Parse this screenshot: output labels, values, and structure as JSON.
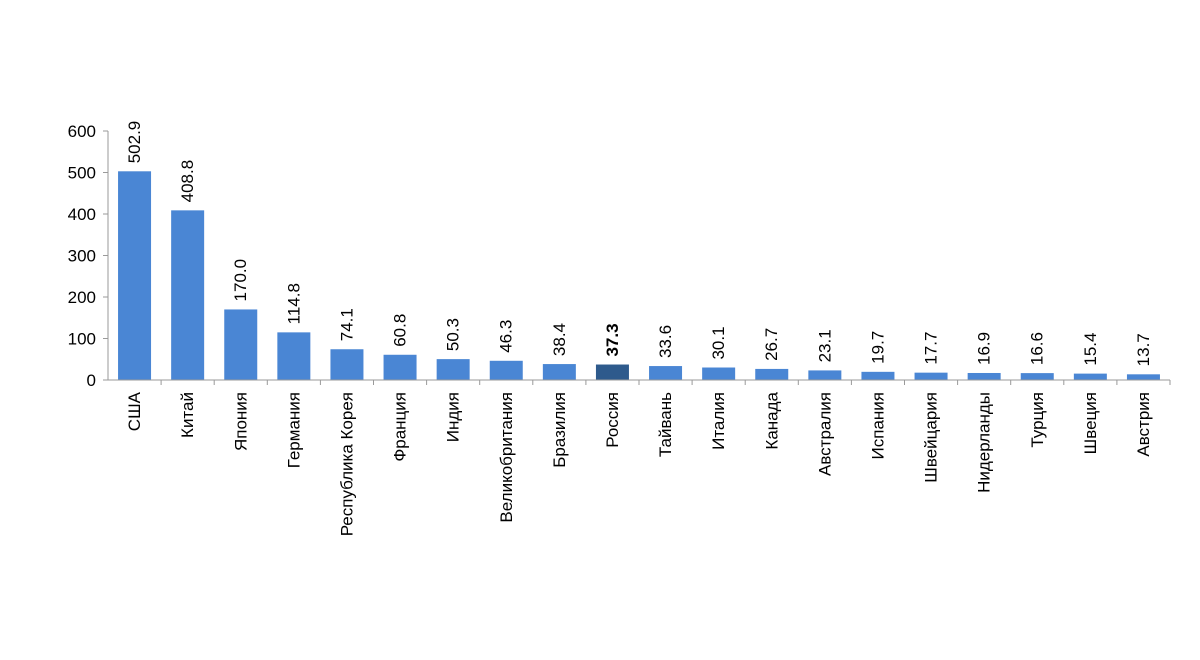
{
  "chart_data": {
    "type": "bar",
    "title": "",
    "xlabel": "",
    "ylabel": "",
    "ylim": [
      0,
      600
    ],
    "yticks": [
      0,
      100,
      200,
      300,
      400,
      500,
      600
    ],
    "ytick_labels": [
      "0",
      "100",
      "200",
      "300",
      "400",
      "500",
      "600"
    ],
    "grid": false,
    "legend": "none",
    "categories": [
      "США",
      "Китай",
      "Япония",
      "Германия",
      "Республика Корея",
      "Франция",
      "Индия",
      "Великобритания",
      "Бразилия",
      "Россия",
      "Тайвань",
      "Италия",
      "Канада",
      "Австралия",
      "Испания",
      "Швейцария",
      "Нидерланды",
      "Турция",
      "Швеция",
      "Австрия"
    ],
    "values": [
      502.9,
      408.8,
      170.0,
      114.8,
      74.1,
      60.8,
      50.3,
      46.3,
      38.4,
      37.3,
      33.6,
      30.1,
      26.7,
      23.1,
      19.7,
      17.7,
      16.9,
      16.6,
      15.4,
      13.7
    ],
    "value_labels": [
      "502.9",
      "408.8",
      "170.0",
      "114.8",
      "74.1",
      "60.8",
      "50.3",
      "46.3",
      "38.4",
      "37.3",
      "33.6",
      "30.1",
      "26.7",
      "23.1",
      "19.7",
      "17.7",
      "16.9",
      "16.6",
      "15.4",
      "13.7"
    ],
    "highlight_index": 9,
    "colors": {
      "bar": "#4a86d4",
      "highlight": "#2e5a8c",
      "axis": "#9a9a9a"
    }
  }
}
